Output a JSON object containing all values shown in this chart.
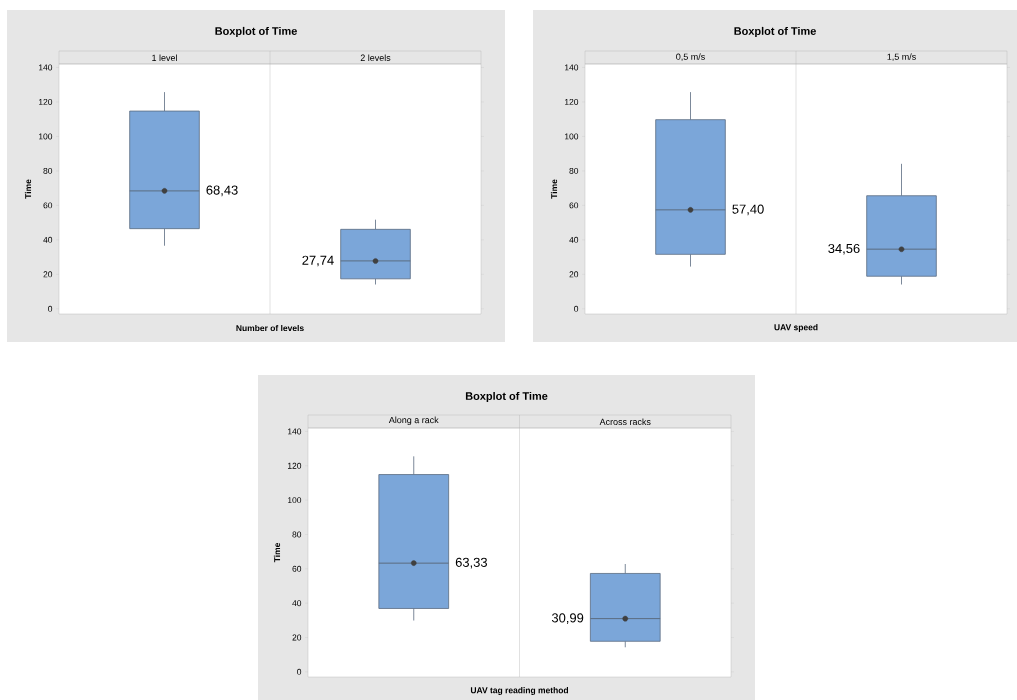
{
  "chart_data": [
    {
      "type": "box",
      "title": "Boxplot of Time",
      "xlabel": "Number of levels",
      "ylabel": "Time",
      "categories": [
        "1 level",
        "2 levels"
      ],
      "color": "#7ba6d9",
      "ylim": [
        -3,
        142
      ],
      "yticks": [
        0,
        20,
        40,
        60,
        80,
        100,
        120,
        140
      ],
      "boxes": [
        {
          "low": 36.6,
          "q1": 46.5,
          "median": 68.4,
          "q3": 114.7,
          "high": 125.7,
          "mean": 68.43
        },
        {
          "low": 14.1,
          "q1": 17.4,
          "median": 27.8,
          "q3": 46.1,
          "high": 51.7,
          "mean": 27.74
        }
      ],
      "annotations": [
        "68,43",
        "27,74"
      ]
    },
    {
      "type": "box",
      "title": "Boxplot of Time",
      "xlabel": "UAV speed",
      "ylabel": "Time",
      "categories": [
        "0,5 m/s",
        "1,5 m/s"
      ],
      "color": "#7ba6d9",
      "ylim": [
        -3,
        142
      ],
      "yticks": [
        0,
        20,
        40,
        60,
        80,
        100,
        120,
        140
      ],
      "boxes": [
        {
          "low": 24.5,
          "q1": 31.6,
          "median": 57.4,
          "q3": 109.7,
          "high": 125.7,
          "mean": 57.4
        },
        {
          "low": 14.1,
          "q1": 18.9,
          "median": 34.6,
          "q3": 65.6,
          "high": 84.1,
          "mean": 34.56
        }
      ],
      "annotations": [
        "57,40",
        "34,56"
      ]
    },
    {
      "type": "box",
      "title": "Boxplot of Time",
      "xlabel": "UAV tag reading method",
      "ylabel": "Time",
      "categories": [
        "Along a rack",
        "Across racks"
      ],
      "color": "#7ba6d9",
      "ylim": [
        -3,
        142
      ],
      "yticks": [
        0,
        20,
        40,
        60,
        80,
        100,
        120,
        140
      ],
      "boxes": [
        {
          "low": 29.9,
          "q1": 36.9,
          "median": 63.3,
          "q3": 114.9,
          "high": 125.5,
          "mean": 63.33
        },
        {
          "low": 14.3,
          "q1": 17.8,
          "median": 31.0,
          "q3": 57.3,
          "high": 62.8,
          "mean": 30.99
        }
      ],
      "annotations": [
        "63,33",
        "30,99"
      ]
    }
  ]
}
